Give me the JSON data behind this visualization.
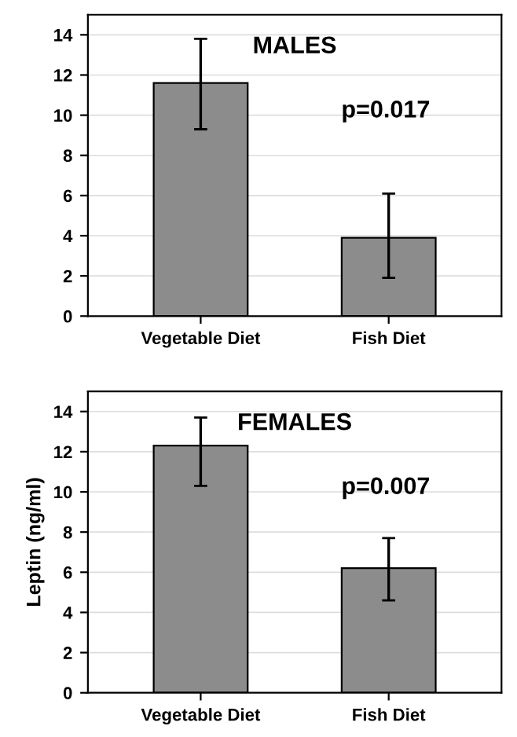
{
  "chart_data": [
    {
      "type": "bar",
      "title": "MALES",
      "categories": [
        "Vegetable Diet",
        "Fish Diet"
      ],
      "values": [
        11.6,
        3.9
      ],
      "errors": [
        [
          9.3,
          13.8
        ],
        [
          1.9,
          6.1
        ]
      ],
      "color": "#8c8c8c",
      "ylim": [
        0,
        15
      ],
      "yticks": [
        0,
        2,
        4,
        6,
        8,
        10,
        12,
        14
      ],
      "grid": "y",
      "annotations": [
        "p=0.017"
      ]
    },
    {
      "type": "bar",
      "title": "FEMALES",
      "categories": [
        "Vegetable Diet",
        "Fish Diet"
      ],
      "values": [
        12.3,
        6.2
      ],
      "errors": [
        [
          10.3,
          13.7
        ],
        [
          4.6,
          7.7
        ]
      ],
      "color": "#8c8c8c",
      "ylim": [
        0,
        15
      ],
      "yticks": [
        0,
        2,
        4,
        6,
        8,
        10,
        12,
        14
      ],
      "grid": "y",
      "ylabel": "Leptin (ng/ml)",
      "annotations": [
        "p=0.007"
      ]
    }
  ]
}
